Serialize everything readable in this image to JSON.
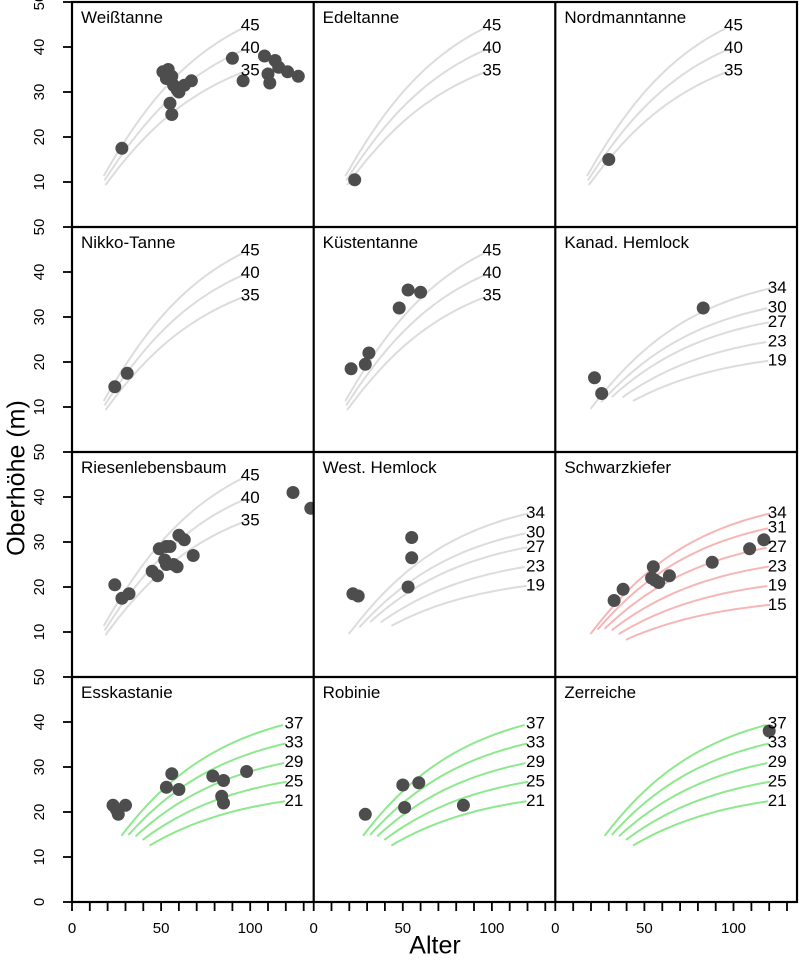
{
  "chart_data": {
    "type": "scatter",
    "xlabel": "Alter",
    "ylabel": "Oberhöhe (m)",
    "x_range": [
      0,
      135
    ],
    "y_range": [
      0,
      50
    ],
    "x_major_ticks": [
      0,
      50,
      100
    ],
    "x_minor_step": 10,
    "x_tick_max": 130,
    "y_ticks": [
      50,
      40,
      30,
      20,
      10
    ],
    "y_bottom_row_extra_tick": 0,
    "layout": {
      "rows": 4,
      "cols": 3,
      "legend": "none",
      "grid": false
    },
    "point_color": "#4d4d4d",
    "curve_palette": {
      "gray": "#dcdcdc",
      "red": "#f7b6b6",
      "green": "#8ee88e"
    },
    "panels": [
      {
        "title": "Weißtanne",
        "curves": {
          "indices": [
            45,
            40,
            35
          ],
          "color": "#dcdcdc",
          "start_age": 18,
          "stagger": 0.5,
          "end_age": 97,
          "label_age": 100
        },
        "points": [
          [
            28,
            17.5
          ],
          [
            51,
            34.5
          ],
          [
            54,
            35
          ],
          [
            53,
            33
          ],
          [
            56,
            33.5
          ],
          [
            57,
            31.5
          ],
          [
            59,
            30.5
          ],
          [
            60,
            30
          ],
          [
            63,
            31.5
          ],
          [
            67,
            32.5
          ],
          [
            55,
            27.5
          ],
          [
            56,
            25
          ],
          [
            90,
            37.5
          ],
          [
            96,
            32.5
          ],
          [
            108,
            38
          ],
          [
            110,
            34
          ],
          [
            111,
            32
          ],
          [
            114,
            37
          ],
          [
            116,
            35.5
          ],
          [
            121,
            34.5
          ],
          [
            127,
            33.5
          ]
        ]
      },
      {
        "title": "Edeltanne",
        "curves": {
          "indices": [
            45,
            40,
            35
          ],
          "color": "#dcdcdc",
          "start_age": 18,
          "stagger": 0.5,
          "end_age": 97,
          "label_age": 100
        },
        "points": [
          [
            23,
            10.5
          ]
        ]
      },
      {
        "title": "Nordmanntanne",
        "curves": {
          "indices": [
            45,
            40,
            35
          ],
          "color": "#dcdcdc",
          "start_age": 18,
          "stagger": 0.5,
          "end_age": 97,
          "label_age": 100
        },
        "points": [
          [
            30,
            15
          ]
        ]
      },
      {
        "title": "Nikko-Tanne",
        "curves": {
          "indices": [
            45,
            40,
            35
          ],
          "color": "#dcdcdc",
          "start_age": 18,
          "stagger": 0.5,
          "end_age": 97,
          "label_age": 100
        },
        "points": [
          [
            24,
            14.5
          ],
          [
            31,
            17.5
          ]
        ]
      },
      {
        "title": "Küstentanne",
        "curves": {
          "indices": [
            45,
            40,
            35
          ],
          "color": "#dcdcdc",
          "start_age": 18,
          "stagger": 0.5,
          "end_age": 97,
          "label_age": 100
        },
        "points": [
          [
            21,
            18.5
          ],
          [
            29,
            19.5
          ],
          [
            31,
            22
          ],
          [
            48,
            32
          ],
          [
            53,
            36
          ],
          [
            60,
            35.5
          ]
        ]
      },
      {
        "title": "Kanad. Hemlock",
        "curves": {
          "indices": [
            34,
            30,
            27,
            23,
            19
          ],
          "color": "#dcdcdc",
          "start_age": 20,
          "stagger": 6,
          "end_age": 120,
          "label_age": 124.5
        },
        "points": [
          [
            22,
            16.5
          ],
          [
            26,
            13
          ],
          [
            83,
            32
          ]
        ]
      },
      {
        "title": "Riesenlebensbaum",
        "curves": {
          "indices": [
            45,
            40,
            35
          ],
          "color": "#dcdcdc",
          "start_age": 18,
          "stagger": 0.5,
          "end_age": 97,
          "label_age": 100
        },
        "points": [
          [
            24,
            20.5
          ],
          [
            28,
            17.5
          ],
          [
            32,
            18.5
          ],
          [
            45,
            23.5
          ],
          [
            48,
            22.5
          ],
          [
            49,
            28.5
          ],
          [
            52,
            26
          ],
          [
            53,
            29
          ],
          [
            53,
            25
          ],
          [
            55,
            29
          ],
          [
            57,
            25
          ],
          [
            59,
            24.5
          ],
          [
            60,
            31.5
          ],
          [
            63,
            30.5
          ],
          [
            68,
            27
          ],
          [
            124,
            41
          ],
          [
            134,
            37.5
          ]
        ]
      },
      {
        "title": "West. Hemlock",
        "curves": {
          "indices": [
            34,
            30,
            27,
            23,
            19
          ],
          "color": "#dcdcdc",
          "start_age": 20,
          "stagger": 6,
          "end_age": 120,
          "label_age": 124.5
        },
        "points": [
          [
            22,
            18.5
          ],
          [
            25,
            18
          ],
          [
            53,
            20
          ],
          [
            55,
            26.5
          ],
          [
            55,
            31
          ]
        ]
      },
      {
        "title": "Schwarzkiefer",
        "curves": {
          "indices": [
            34,
            31,
            27,
            23,
            19,
            15
          ],
          "color": "#f7b6b6",
          "start_age": 20,
          "stagger": 4,
          "end_age": 120,
          "label_age": 124.5
        },
        "points": [
          [
            33,
            17
          ],
          [
            38,
            19.5
          ],
          [
            54,
            22
          ],
          [
            56,
            21.5
          ],
          [
            58,
            21
          ],
          [
            55,
            24.5
          ],
          [
            64,
            22.5
          ],
          [
            88,
            25.5
          ],
          [
            109,
            28.5
          ],
          [
            117,
            30.5
          ]
        ]
      },
      {
        "title": "Esskastanie",
        "curves": {
          "indices": [
            37,
            33,
            29,
            25,
            21
          ],
          "color": "#8ee88e",
          "start_age": 28,
          "stagger": 4,
          "end_age": 120,
          "label_age": 124.5
        },
        "points": [
          [
            23,
            21.5
          ],
          [
            25,
            20.5
          ],
          [
            26,
            19.5
          ],
          [
            30,
            21.5
          ],
          [
            53,
            25.5
          ],
          [
            56,
            28.5
          ],
          [
            60,
            25
          ],
          [
            79,
            28
          ],
          [
            84,
            23.5
          ],
          [
            85,
            27
          ],
          [
            85,
            22
          ],
          [
            98,
            29
          ]
        ]
      },
      {
        "title": "Robinie",
        "curves": {
          "indices": [
            37,
            33,
            29,
            25,
            21
          ],
          "color": "#8ee88e",
          "start_age": 28,
          "stagger": 4,
          "end_age": 120,
          "label_age": 124.5
        },
        "points": [
          [
            29,
            19.5
          ],
          [
            50,
            26
          ],
          [
            51,
            21
          ],
          [
            59,
            26.5
          ],
          [
            84,
            21.5
          ]
        ]
      },
      {
        "title": "Zerreiche",
        "curves": {
          "indices": [
            37,
            33,
            29,
            25,
            21
          ],
          "color": "#8ee88e",
          "start_age": 28,
          "stagger": 4,
          "end_age": 120,
          "label_age": 124.5
        },
        "points": [
          [
            120,
            38
          ]
        ]
      }
    ]
  }
}
